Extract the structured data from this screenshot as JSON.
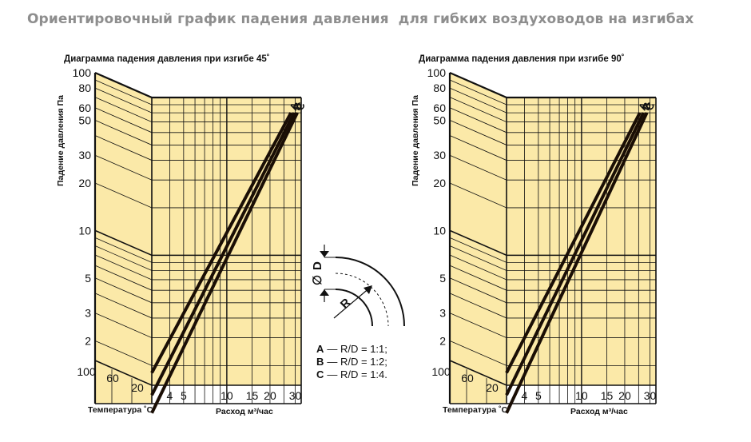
{
  "title": "Ориентировочный график падения давления  для гибких воздуховодов на изгибах",
  "chart_data": [
    {
      "type": "line",
      "title": "Диаграмма падения давления при изгибе 45˚",
      "ylabel": "Падение давления Па",
      "xlabel": "Расход м³/час",
      "temp_label": "Температура ˚С",
      "y_scale": "log",
      "ylim": [
        1.5,
        100
      ],
      "y_ticks": [
        "100",
        "80",
        "60",
        "50",
        "30",
        "20",
        "10",
        "5",
        "3",
        "2"
      ],
      "x_scale": "log",
      "xlim": [
        3,
        33
      ],
      "x_ticks": [
        "4",
        "5",
        "10",
        "15",
        "20",
        "30"
      ],
      "temp_ticks": [
        "100",
        "60",
        "20"
      ],
      "series": [
        {
          "name": "A",
          "x": [
            3.0,
            28.0
          ],
          "y": [
            1.8,
            80
          ]
        },
        {
          "name": "B",
          "x": [
            3.0,
            29.5
          ],
          "y": [
            1.3,
            80
          ]
        },
        {
          "name": "C",
          "x": [
            3.0,
            31.0
          ],
          "y": [
            1.0,
            80
          ]
        }
      ]
    },
    {
      "type": "line",
      "title": "Диаграмма падения давления при изгибе 90˚",
      "ylabel": "Падение давления Па",
      "xlabel": "Расход м³/час",
      "temp_label": "Температура ˚С",
      "y_scale": "log",
      "ylim": [
        1.5,
        100
      ],
      "y_ticks": [
        "100",
        "80",
        "60",
        "50",
        "30",
        "20",
        "10",
        "5",
        "3",
        "2"
      ],
      "x_scale": "log",
      "xlim": [
        3,
        33
      ],
      "x_ticks": [
        "4",
        "5",
        "10",
        "15",
        "20",
        "30"
      ],
      "temp_ticks": [
        "100",
        "60",
        "20"
      ],
      "series": [
        {
          "name": "A",
          "x": [
            3.0,
            25.5
          ],
          "y": [
            1.8,
            80
          ]
        },
        {
          "name": "B",
          "x": [
            3.0,
            27.0
          ],
          "y": [
            1.3,
            80
          ]
        },
        {
          "name": "C",
          "x": [
            3.0,
            28.5
          ],
          "y": [
            1.0,
            80
          ]
        }
      ]
    }
  ],
  "diagram": {
    "d_label": "D",
    "diameter_symbol": "∅",
    "r_label": "R"
  },
  "legend": [
    {
      "key": "A",
      "text": "— R/D = 1:1;"
    },
    {
      "key": "B",
      "text": "— R/D = 1:2;"
    },
    {
      "key": "C",
      "text": "— R/D = 1:4."
    }
  ],
  "colors": {
    "paper": "#fbe9a8",
    "grid": "#111111",
    "title": "#8e8e8e"
  }
}
